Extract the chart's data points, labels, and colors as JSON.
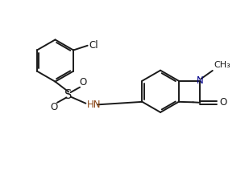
{
  "bg_color": "#ffffff",
  "line_color": "#1a1a1a",
  "bond_width": 1.4,
  "font_size": 8.5,
  "figsize": [
    3.09,
    2.18
  ],
  "dpi": 100,
  "xlim": [
    0,
    9.5
  ],
  "ylim": [
    0,
    6.8
  ]
}
